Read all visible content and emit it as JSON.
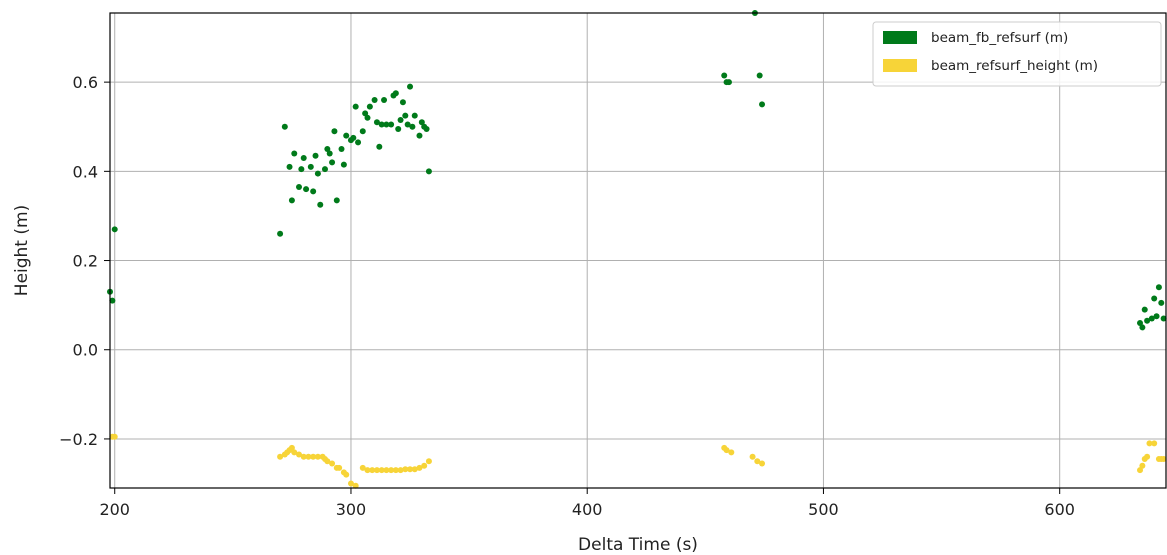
{
  "chart_data": {
    "type": "scatter",
    "xlabel": "Delta Time (s)",
    "ylabel": "Height (m)",
    "xlim": [
      198,
      645
    ],
    "ylim": [
      -0.31,
      0.755
    ],
    "xticks": [
      200,
      300,
      400,
      500,
      600
    ],
    "yticks": [
      -0.2,
      0.0,
      0.2,
      0.4,
      0.6
    ],
    "xtick_labels": [
      "200",
      "300",
      "400",
      "500",
      "600"
    ],
    "ytick_labels": [
      "−0.2",
      "0.0",
      "0.2",
      "0.4",
      "0.6"
    ],
    "grid": true,
    "legend_position": "top-right",
    "series": [
      {
        "name": "beam_fb_refsurf (m)",
        "color": "#007a1a",
        "points": [
          [
            198,
            0.13
          ],
          [
            199,
            0.11
          ],
          [
            200,
            0.27
          ],
          [
            270,
            0.26
          ],
          [
            272,
            0.5
          ],
          [
            274,
            0.41
          ],
          [
            275,
            0.335
          ],
          [
            276,
            0.44
          ],
          [
            278,
            0.365
          ],
          [
            279,
            0.405
          ],
          [
            280,
            0.43
          ],
          [
            281,
            0.36
          ],
          [
            283,
            0.41
          ],
          [
            284,
            0.355
          ],
          [
            285,
            0.435
          ],
          [
            286,
            0.395
          ],
          [
            287,
            0.325
          ],
          [
            289,
            0.405
          ],
          [
            290,
            0.45
          ],
          [
            291,
            0.44
          ],
          [
            292,
            0.42
          ],
          [
            293,
            0.49
          ],
          [
            294,
            0.335
          ],
          [
            296,
            0.45
          ],
          [
            297,
            0.415
          ],
          [
            298,
            0.48
          ],
          [
            300,
            0.47
          ],
          [
            301,
            0.475
          ],
          [
            302,
            0.545
          ],
          [
            303,
            0.465
          ],
          [
            305,
            0.49
          ],
          [
            306,
            0.53
          ],
          [
            307,
            0.52
          ],
          [
            308,
            0.545
          ],
          [
            310,
            0.56
          ],
          [
            311,
            0.51
          ],
          [
            312,
            0.455
          ],
          [
            313,
            0.505
          ],
          [
            314,
            0.56
          ],
          [
            315,
            0.505
          ],
          [
            317,
            0.505
          ],
          [
            318,
            0.57
          ],
          [
            319,
            0.575
          ],
          [
            320,
            0.495
          ],
          [
            321,
            0.515
          ],
          [
            322,
            0.555
          ],
          [
            323,
            0.525
          ],
          [
            324,
            0.505
          ],
          [
            325,
            0.59
          ],
          [
            326,
            0.5
          ],
          [
            327,
            0.525
          ],
          [
            329,
            0.48
          ],
          [
            330,
            0.51
          ],
          [
            331,
            0.5
          ],
          [
            332,
            0.495
          ],
          [
            333,
            0.4
          ],
          [
            458,
            0.615
          ],
          [
            459,
            0.6
          ],
          [
            460,
            0.6
          ],
          [
            471,
            0.755
          ],
          [
            473,
            0.615
          ],
          [
            474,
            0.55
          ],
          [
            634,
            0.06
          ],
          [
            635,
            0.05
          ],
          [
            636,
            0.09
          ],
          [
            637,
            0.065
          ],
          [
            639,
            0.07
          ],
          [
            640,
            0.115
          ],
          [
            641,
            0.075
          ],
          [
            642,
            0.14
          ],
          [
            643,
            0.105
          ],
          [
            644,
            0.07
          ]
        ]
      },
      {
        "name": "beam_refsurf_height (m)",
        "color": "#f7d438",
        "points": [
          [
            199,
            -0.195
          ],
          [
            200,
            -0.195
          ],
          [
            270,
            -0.24
          ],
          [
            272,
            -0.235
          ],
          [
            273,
            -0.23
          ],
          [
            274,
            -0.225
          ],
          [
            275,
            -0.22
          ],
          [
            276,
            -0.23
          ],
          [
            278,
            -0.235
          ],
          [
            280,
            -0.24
          ],
          [
            282,
            -0.24
          ],
          [
            284,
            -0.24
          ],
          [
            286,
            -0.24
          ],
          [
            288,
            -0.24
          ],
          [
            289,
            -0.245
          ],
          [
            290,
            -0.25
          ],
          [
            292,
            -0.255
          ],
          [
            294,
            -0.265
          ],
          [
            295,
            -0.265
          ],
          [
            297,
            -0.275
          ],
          [
            298,
            -0.28
          ],
          [
            300,
            -0.3
          ],
          [
            302,
            -0.305
          ],
          [
            305,
            -0.265
          ],
          [
            307,
            -0.27
          ],
          [
            309,
            -0.27
          ],
          [
            311,
            -0.27
          ],
          [
            313,
            -0.27
          ],
          [
            315,
            -0.27
          ],
          [
            317,
            -0.27
          ],
          [
            319,
            -0.27
          ],
          [
            321,
            -0.27
          ],
          [
            323,
            -0.268
          ],
          [
            325,
            -0.268
          ],
          [
            327,
            -0.268
          ],
          [
            329,
            -0.265
          ],
          [
            331,
            -0.26
          ],
          [
            333,
            -0.25
          ],
          [
            458,
            -0.22
          ],
          [
            459,
            -0.225
          ],
          [
            461,
            -0.23
          ],
          [
            470,
            -0.24
          ],
          [
            472,
            -0.25
          ],
          [
            474,
            -0.255
          ],
          [
            634,
            -0.27
          ],
          [
            635,
            -0.26
          ],
          [
            636,
            -0.245
          ],
          [
            637,
            -0.24
          ],
          [
            638,
            -0.21
          ],
          [
            640,
            -0.21
          ],
          [
            642,
            -0.245
          ],
          [
            643,
            -0.245
          ],
          [
            644,
            -0.245
          ]
        ]
      }
    ]
  }
}
